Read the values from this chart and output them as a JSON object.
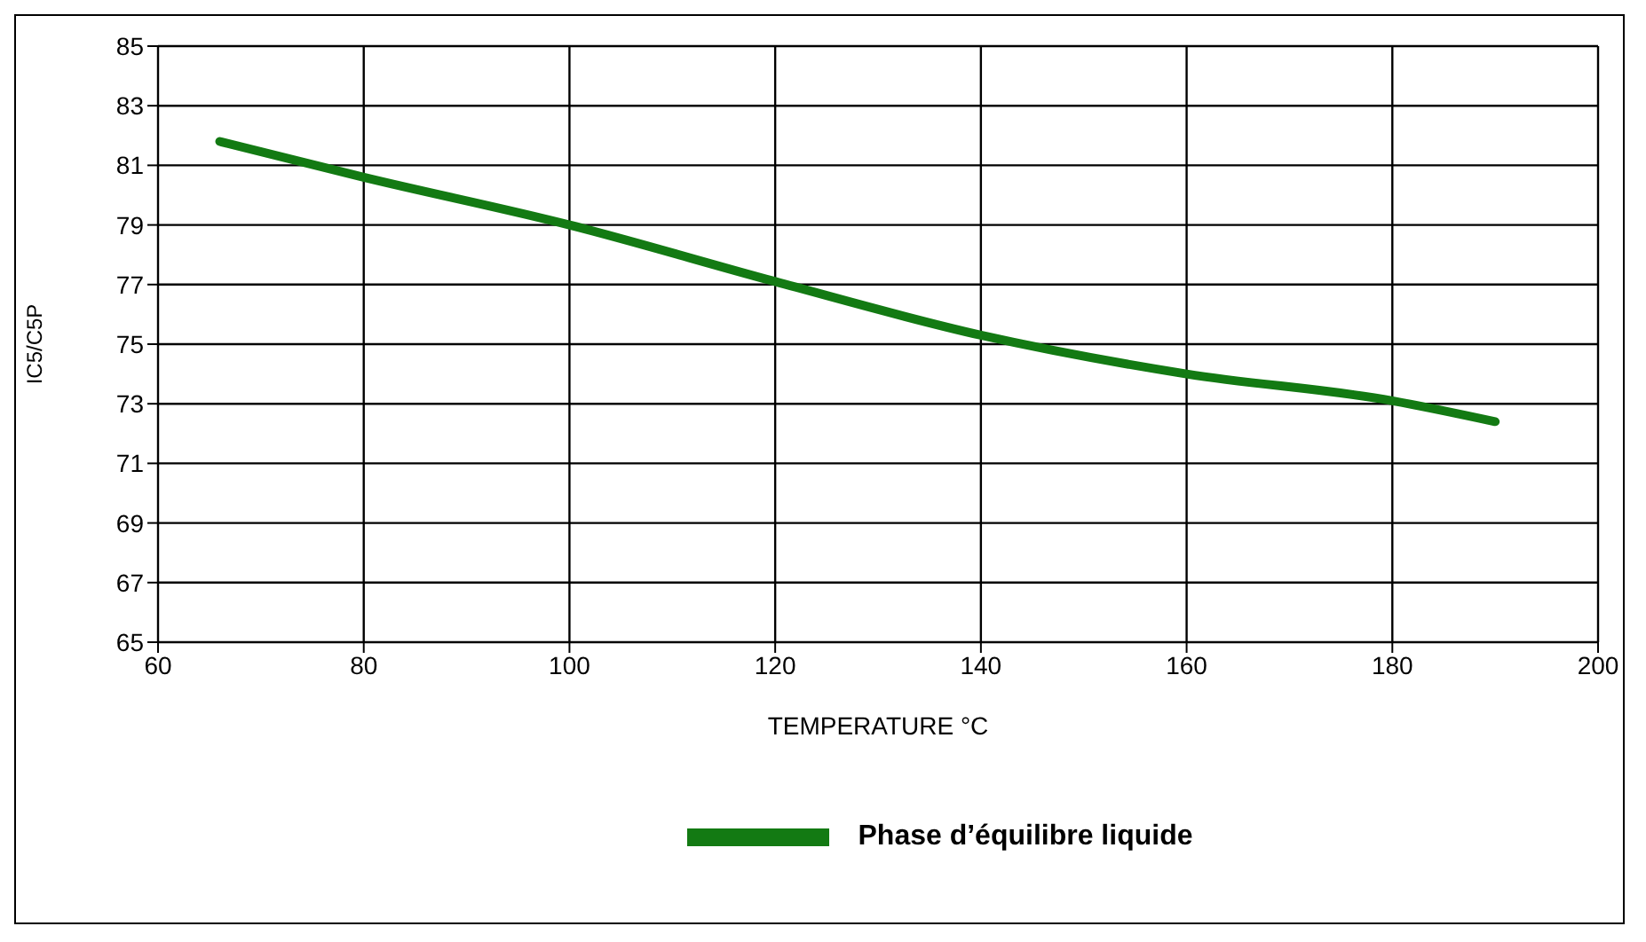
{
  "chart_data": {
    "type": "line",
    "xlabel": "TEMPERATURE °C",
    "ylabel": "IC5/C5P",
    "series": [
      {
        "name": "Phase d’équilibre liquide",
        "color": "#137a13",
        "x": [
          66,
          80,
          100,
          120,
          140,
          160,
          180,
          190
        ],
        "values": [
          81.8,
          80.6,
          79.0,
          77.1,
          75.3,
          74.0,
          73.1,
          72.4
        ]
      }
    ],
    "xlim": [
      60,
      200
    ],
    "xticks": [
      60,
      80,
      100,
      120,
      140,
      160,
      180,
      200
    ],
    "ylim": [
      65,
      85
    ],
    "yticks": [
      65,
      67,
      69,
      71,
      73,
      75,
      77,
      79,
      81,
      83,
      85
    ],
    "grid": true,
    "legend": "bottom",
    "marker": "none",
    "line_style": "solid"
  }
}
